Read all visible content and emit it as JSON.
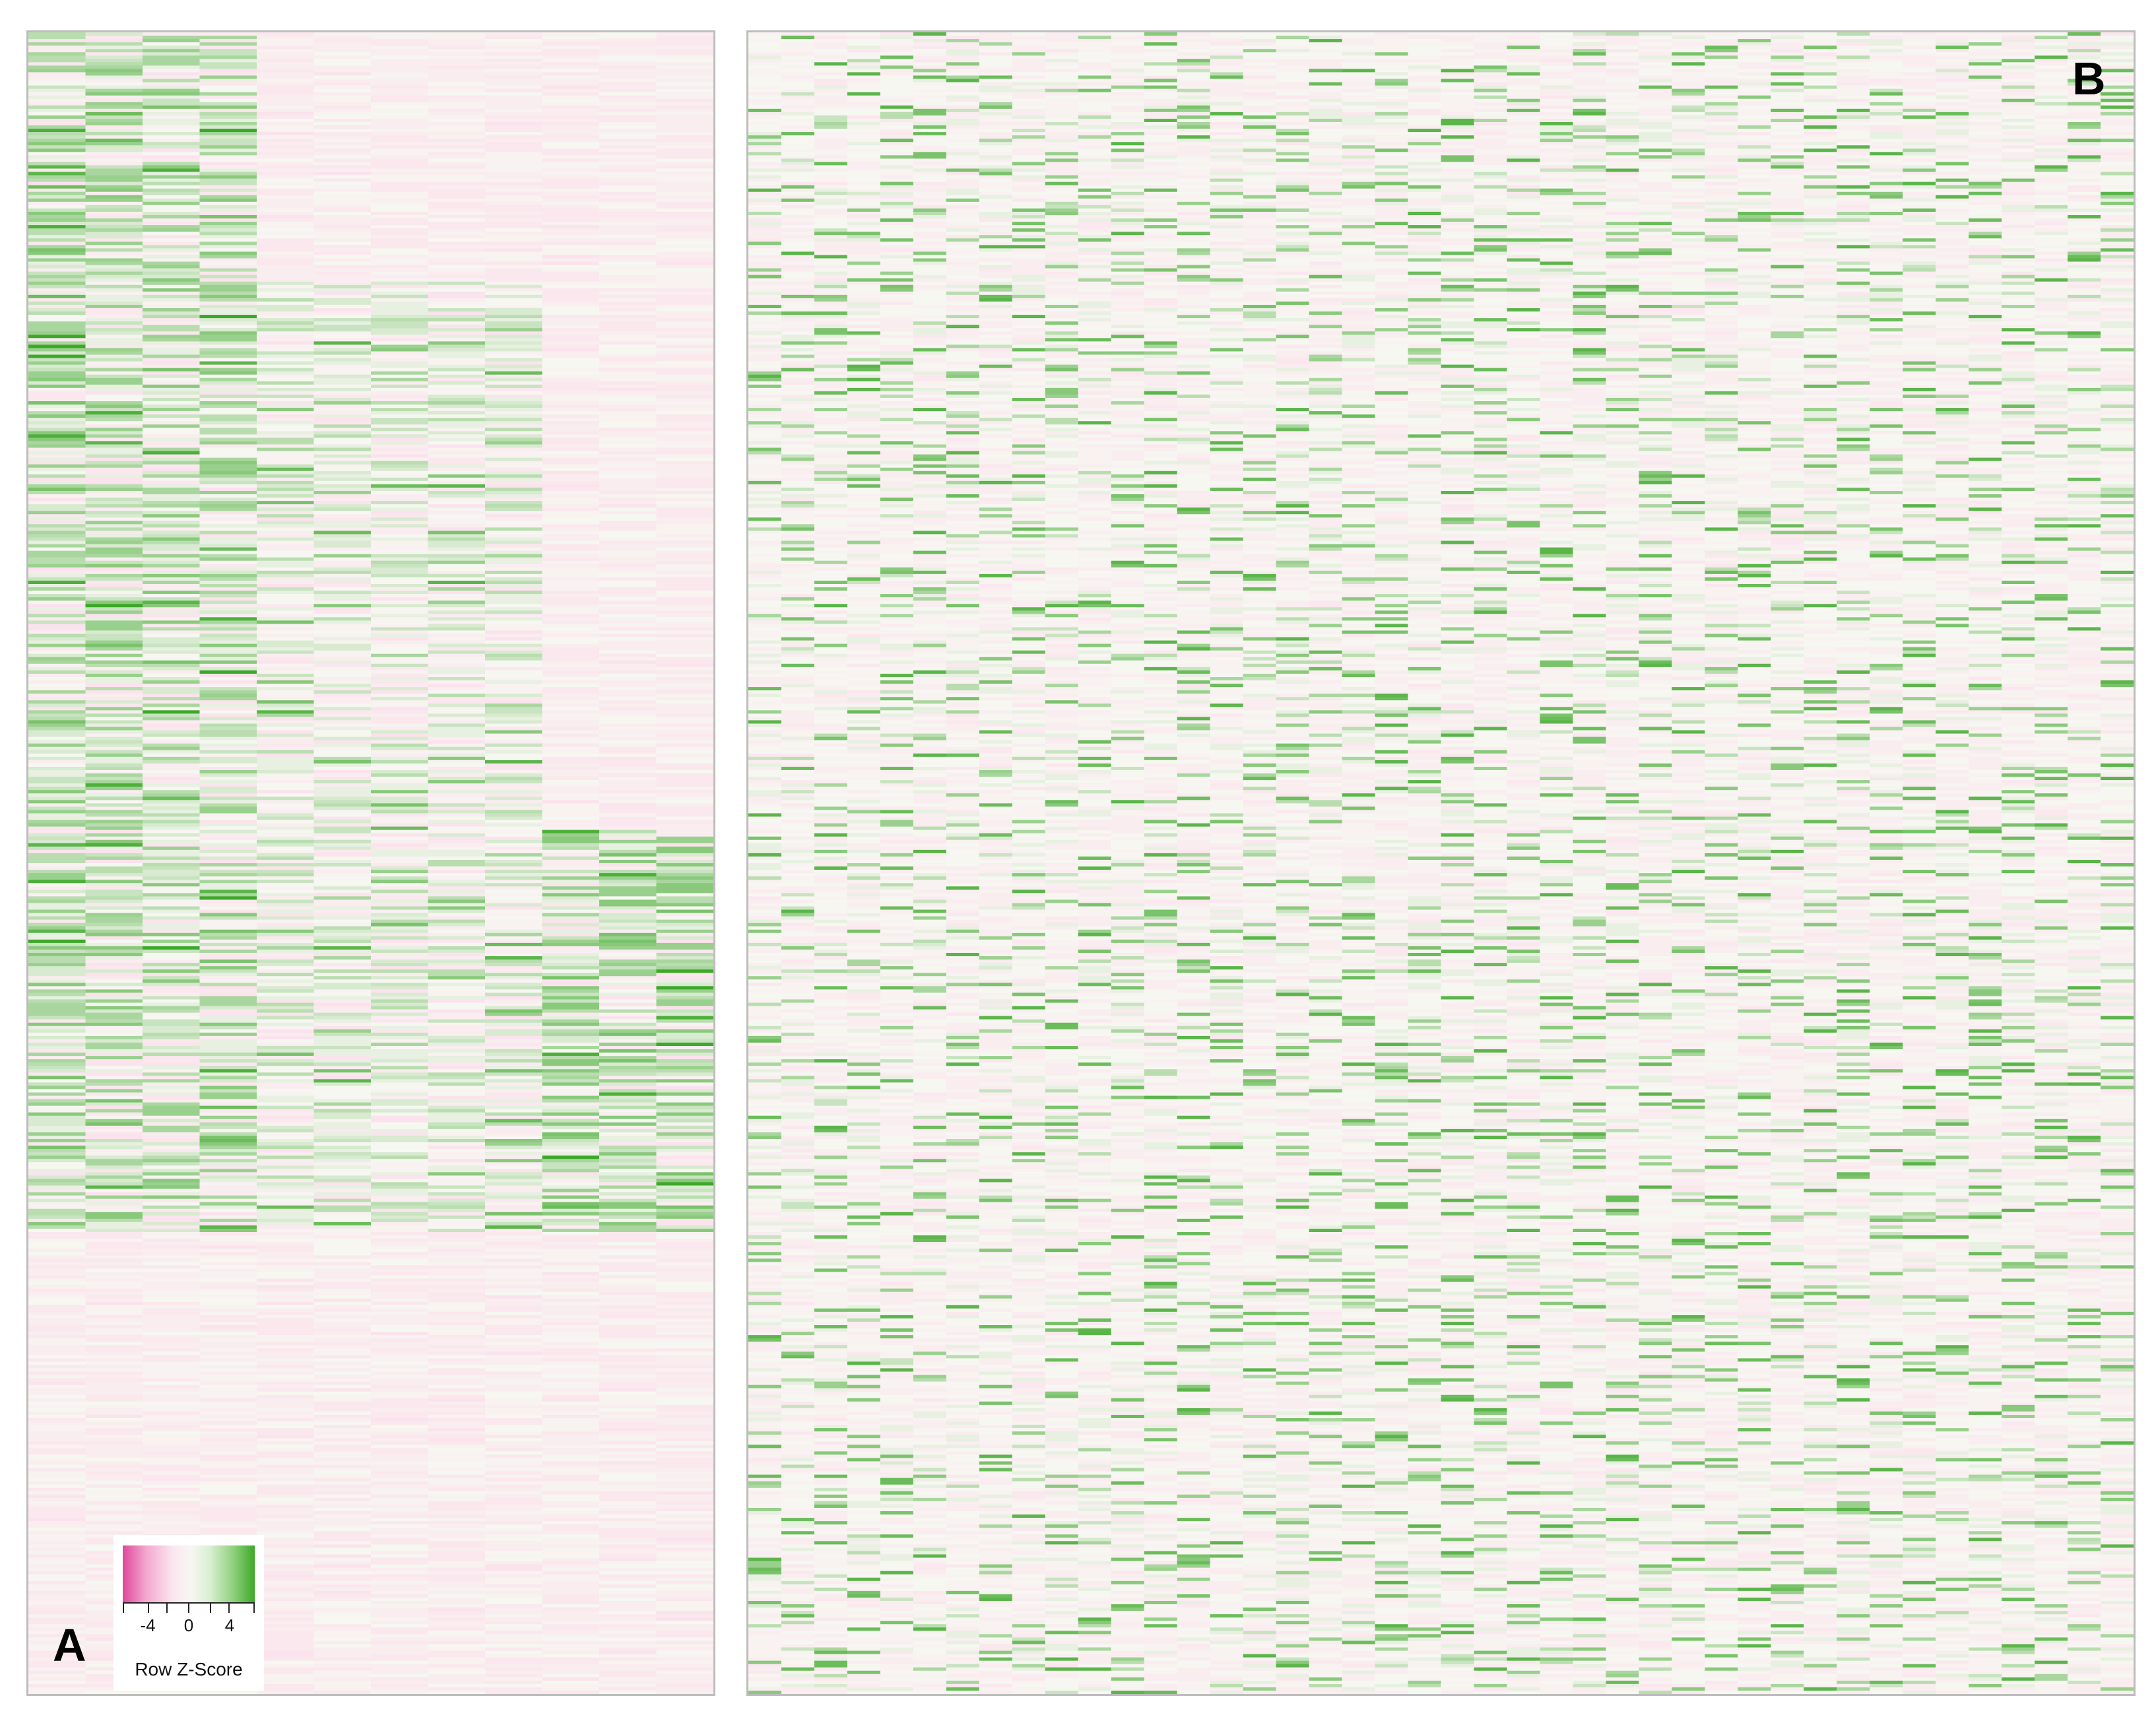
{
  "panels": {
    "a": {
      "label": "A"
    },
    "b": {
      "label": "B"
    }
  },
  "legend": {
    "title": "Row Z-Score",
    "ticks": [
      "-4",
      "0",
      "4"
    ],
    "colors": {
      "low": "#e0479a",
      "mid": "#f7f7f2",
      "high": "#3ca828"
    }
  },
  "chart_data": [
    {
      "type": "heatmap",
      "panel": "A",
      "n_columns": 12,
      "n_rows": 500,
      "scale": {
        "min": -4,
        "max": 4,
        "legend_title": "Row Z-Score"
      },
      "column_groups": [
        {
          "cols": [
            0,
            1,
            2,
            3
          ],
          "high_row_range": [
            0.0,
            0.72
          ],
          "mean_z": 1.2
        },
        {
          "cols": [
            4,
            5,
            6,
            7,
            8
          ],
          "high_row_range": [
            0.15,
            0.72
          ],
          "mean_z": 0.3
        },
        {
          "cols": [
            9,
            10,
            11
          ],
          "high_row_range": [
            0.48,
            0.72
          ],
          "mean_z": 1.5
        }
      ],
      "background_z": -0.6
    },
    {
      "type": "heatmap",
      "panel": "B",
      "n_columns": 42,
      "n_rows": 500,
      "scale": {
        "min": -4,
        "max": 4,
        "legend_title": "Row Z-Score"
      },
      "background_z": -0.3
    }
  ]
}
